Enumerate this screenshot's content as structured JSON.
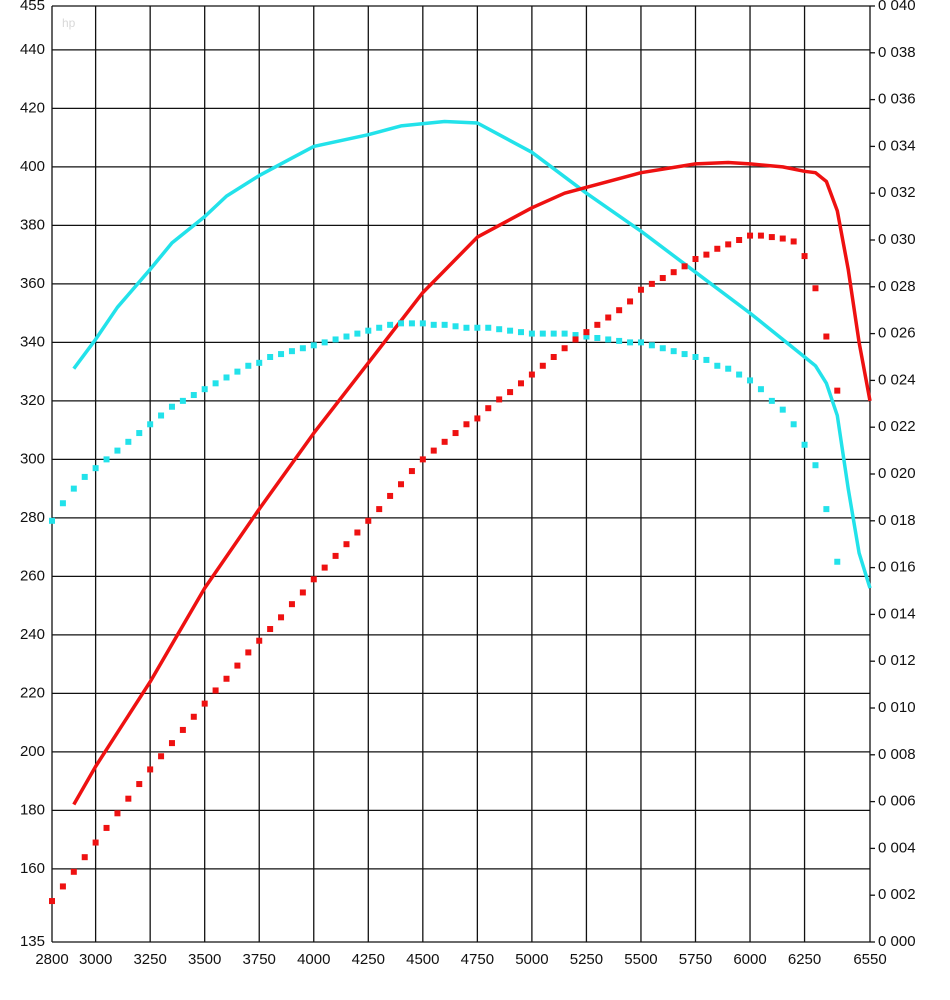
{
  "chart_data": {
    "type": "line",
    "y_label": "hp",
    "xlim": [
      2800,
      6550
    ],
    "xticks": [
      2800,
      3000,
      3250,
      3500,
      3750,
      4000,
      4250,
      4500,
      4750,
      5000,
      5250,
      5500,
      5750,
      6000,
      6250,
      6550
    ],
    "ylim": [
      135,
      455
    ],
    "yticks": [
      135,
      160,
      180,
      200,
      220,
      240,
      260,
      280,
      300,
      320,
      340,
      360,
      380,
      400,
      420,
      440,
      455
    ],
    "y2lim": [
      0,
      0.04
    ],
    "y2ticks": [
      {
        "value": 0,
        "label": "0 000"
      },
      {
        "value": 0.002,
        "label": "0 002"
      },
      {
        "value": 0.004,
        "label": "0 004"
      },
      {
        "value": 0.006,
        "label": "0 006"
      },
      {
        "value": 0.008,
        "label": "0 008"
      },
      {
        "value": 0.01,
        "label": "0 010"
      },
      {
        "value": 0.012,
        "label": "0 012"
      },
      {
        "value": 0.014,
        "label": "0 014"
      },
      {
        "value": 0.016,
        "label": "0 016"
      },
      {
        "value": 0.018,
        "label": "0 018"
      },
      {
        "value": 0.02,
        "label": "0 020"
      },
      {
        "value": 0.022,
        "label": "0 022"
      },
      {
        "value": 0.024,
        "label": "0 024"
      },
      {
        "value": 0.026,
        "label": "0 026"
      },
      {
        "value": 0.028,
        "label": "0 028"
      },
      {
        "value": 0.03,
        "label": "0 030"
      },
      {
        "value": 0.032,
        "label": "0 032"
      },
      {
        "value": 0.034,
        "label": "0 034"
      },
      {
        "value": 0.036,
        "label": "0 036"
      },
      {
        "value": 0.038,
        "label": "0 038"
      },
      {
        "value": 0.04,
        "label": "0 040"
      }
    ],
    "grid": true,
    "series": [
      {
        "style": "solid",
        "color": "#22e2ea",
        "x": [
          2900,
          3000,
          3100,
          3250,
          3350,
          3500,
          3600,
          3750,
          3900,
          4000,
          4250,
          4400,
          4600,
          4750,
          5000,
          5250,
          5500,
          5750,
          6000,
          6250,
          6300,
          6350,
          6400,
          6450,
          6500,
          6550
        ],
        "values": [
          331,
          341,
          352,
          365,
          374,
          383,
          390,
          397,
          403,
          407,
          411,
          414,
          415.5,
          415,
          405,
          391,
          378,
          364,
          350,
          335,
          332,
          326,
          315,
          290,
          268,
          256
        ]
      },
      {
        "style": "solid",
        "color": "#ee1111",
        "x": [
          2900,
          3000,
          3250,
          3500,
          3750,
          4000,
          4250,
          4500,
          4750,
          5000,
          5150,
          5300,
          5500,
          5750,
          5900,
          6000,
          6150,
          6250,
          6300,
          6350,
          6400,
          6450,
          6500,
          6550
        ],
        "values": [
          182,
          195,
          224,
          256,
          283,
          309,
          333,
          357,
          376,
          386,
          391,
          394,
          398,
          401,
          401.5,
          401,
          400,
          398.5,
          398,
          395,
          385,
          365,
          340,
          320
        ]
      },
      {
        "style": "dotted",
        "color": "#22e2ea",
        "x": [
          2800,
          2850,
          2900,
          2950,
          3000,
          3050,
          3100,
          3150,
          3200,
          3250,
          3300,
          3350,
          3400,
          3450,
          3500,
          3550,
          3600,
          3650,
          3700,
          3750,
          3800,
          3850,
          3900,
          3950,
          4000,
          4050,
          4100,
          4150,
          4200,
          4250,
          4300,
          4350,
          4400,
          4450,
          4500,
          4550,
          4600,
          4650,
          4700,
          4750,
          4800,
          4850,
          4900,
          4950,
          5000,
          5050,
          5100,
          5150,
          5200,
          5250,
          5300,
          5350,
          5400,
          5450,
          5500,
          5550,
          5600,
          5650,
          5700,
          5750,
          5800,
          5850,
          5900,
          5950,
          6000,
          6050,
          6100,
          6150,
          6200,
          6250,
          6300,
          6350,
          6400
        ],
        "values": [
          279,
          285,
          290,
          294,
          297,
          300,
          303,
          306,
          309,
          312,
          315,
          318,
          320,
          322,
          324,
          326,
          328,
          330,
          332,
          333,
          335,
          336,
          337,
          338,
          339,
          340,
          341,
          342,
          343,
          344,
          345,
          346,
          346.5,
          346.5,
          346.5,
          346,
          346,
          345.5,
          345,
          345,
          345,
          344.5,
          344,
          343.5,
          343,
          343,
          343,
          343,
          342.5,
          342,
          341.5,
          341,
          340.5,
          340,
          340,
          339,
          338,
          337,
          336,
          335,
          334,
          332,
          331,
          329,
          327,
          324,
          320,
          317,
          312,
          305,
          298,
          283,
          265
        ]
      },
      {
        "style": "dotted",
        "color": "#ee1111",
        "x": [
          2800,
          2850,
          2900,
          2950,
          3000,
          3050,
          3100,
          3150,
          3200,
          3250,
          3300,
          3350,
          3400,
          3450,
          3500,
          3550,
          3600,
          3650,
          3700,
          3750,
          3800,
          3850,
          3900,
          3950,
          4000,
          4050,
          4100,
          4150,
          4200,
          4250,
          4300,
          4350,
          4400,
          4450,
          4500,
          4550,
          4600,
          4650,
          4700,
          4750,
          4800,
          4850,
          4900,
          4950,
          5000,
          5050,
          5100,
          5150,
          5200,
          5250,
          5300,
          5350,
          5400,
          5450,
          5500,
          5550,
          5600,
          5650,
          5700,
          5750,
          5800,
          5850,
          5900,
          5950,
          6000,
          6050,
          6100,
          6150,
          6200,
          6250,
          6300,
          6350,
          6400
        ],
        "values": [
          149,
          154,
          159,
          164,
          169,
          174,
          179,
          184,
          189,
          194,
          198.5,
          203,
          207.5,
          212,
          216.5,
          221,
          225,
          229.5,
          234,
          238,
          242,
          246,
          250.5,
          254.5,
          259,
          263,
          267,
          271,
          275,
          279,
          283,
          287.5,
          291.5,
          296,
          300,
          303,
          306,
          309,
          312,
          314,
          317.5,
          320.5,
          323,
          326,
          329,
          332,
          335,
          338,
          341,
          343.5,
          346,
          348.5,
          351,
          354,
          358,
          360,
          362,
          364,
          366,
          368.5,
          370,
          372,
          373.5,
          375,
          376.5,
          376.5,
          376,
          375.5,
          374.5,
          369.5,
          358.5,
          342,
          323.5
        ]
      }
    ]
  }
}
